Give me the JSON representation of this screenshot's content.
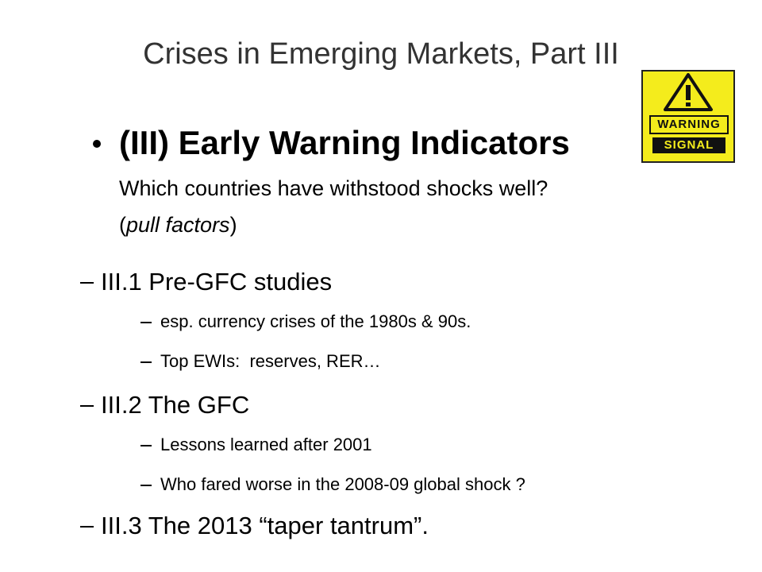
{
  "slide": {
    "title": "Crises in Emerging Markets, Part III",
    "bullet": {
      "heading": "(III) Early Warning Indicators",
      "question": "Which countries have withstood shocks well?",
      "note": {
        "open": "(",
        "italic": "pull factors",
        "close": ")"
      }
    },
    "items": [
      {
        "text": "III.1 Pre-GFC studies",
        "children": [
          "esp. currency crises of the 1980s & 90s.",
          "Top EWIs:  reserves, RER…"
        ]
      },
      {
        "text": "III.2 The GFC",
        "children": [
          "Lessons learned after 2001",
          "Who fared worse in the 2008-09 global shock ?"
        ]
      },
      {
        "text": "III.3 The 2013 “taper tantrum”.",
        "children": []
      }
    ],
    "sign": {
      "top": "WARNING",
      "bottom": "SIGNAL"
    }
  }
}
